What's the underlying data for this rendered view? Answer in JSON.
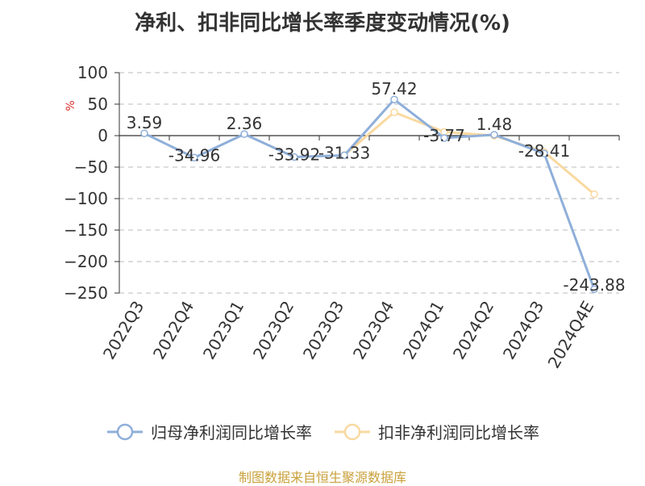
{
  "title": "净利、扣非同比增长率季度变动情况(%)",
  "source": "制图数据来自恒生聚源数据库",
  "colors": {
    "series1": "#8fafd9",
    "series2": "#f9d9a0",
    "axis": "#333333",
    "grid": "#bbbbbb",
    "unit": "#d9312b"
  },
  "chart_data": {
    "type": "line",
    "title": "净利、扣非同比增长率季度变动情况(%)",
    "ylabel": "%",
    "ylim": [
      -250,
      100
    ],
    "yticks": [
      100,
      50,
      0,
      -50,
      -100,
      -150,
      -200,
      -250
    ],
    "grid": true,
    "legend_position": "bottom",
    "categories": [
      "2022Q3",
      "2022Q4",
      "2023Q1",
      "2023Q2",
      "2023Q3",
      "2023Q4",
      "2024Q1",
      "2024Q2",
      "2024Q3",
      "2024Q4E"
    ],
    "series": [
      {
        "name": "归母净利润同比增长率",
        "values": [
          3.59,
          -34.96,
          2.36,
          -33.92,
          -31.33,
          57.42,
          -3.77,
          1.48,
          -28.41,
          -243.88
        ],
        "labels": [
          "3.59",
          "-34.96",
          "2.36",
          "-33.92",
          "-31.33",
          "57.42",
          "-3.77",
          "1.48",
          "-28.41",
          "-243.88"
        ]
      },
      {
        "name": "扣非净利润同比增长率",
        "values": [
          null,
          null,
          null,
          null,
          -31.0,
          37.0,
          6.0,
          0.0,
          -26.0,
          -93.0
        ]
      }
    ]
  }
}
